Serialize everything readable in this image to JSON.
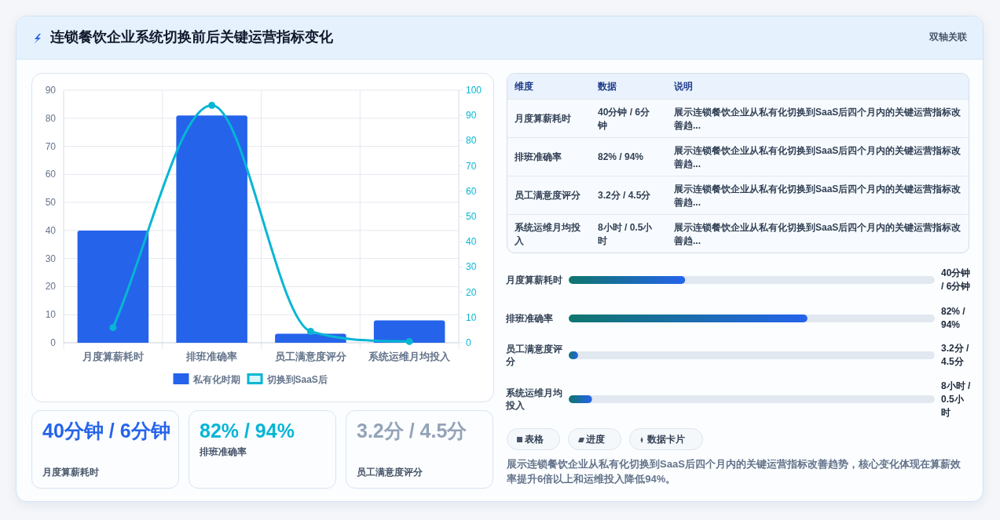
{
  "chart_data": [
    {
      "type": "bar",
      "title": "连锁餐饮企业系统切换前后关键运营指标变化",
      "annotations": [
        "双轴关联"
      ],
      "categories": [
        "月度算薪耗时",
        "排班准确率",
        "员工满意度评分",
        "系统运维月均投入"
      ],
      "series": [
        {
          "name": "私有化时期",
          "color": "#2563eb",
          "values": [
            40,
            81,
            3.2,
            8
          ]
        },
        {
          "name": "切换到SaaS后",
          "type": "line",
          "axis": "y2",
          "color": "#06b6d4",
          "values": [
            6,
            94,
            4.5,
            0.5
          ]
        }
      ],
      "ylim": [
        0,
        90
      ],
      "yticks": [
        0,
        10,
        20,
        30,
        40,
        50,
        60,
        70,
        80,
        90
      ],
      "y2lim": [
        0,
        100
      ],
      "y2ticks": [
        0,
        10,
        20,
        30,
        40,
        50,
        60,
        70,
        80,
        90,
        100
      ],
      "grid": true,
      "legend": "bottom",
      "marker": "circle"
    },
    {
      "type": "other",
      "annotations": [
        "维度",
        "数据",
        "说明",
        "月度算薪耗时",
        "40分钟 / 6分钟",
        "展示连锁餐饮企业从私有化切换到SaaS后四个月内的关键运营指标改善趋...",
        "排班准确率",
        "82% / 94%",
        "展示连锁餐饮企业从私有化切换到SaaS后四个月内的关键运营指标改善趋...",
        "员工满意度评分",
        "3.2分 / 4.5分",
        "展示连锁餐饮企业从私有化切换到SaaS后四个月内的关键运营指标改善趋...",
        "系统运维月均投入",
        "8小时 / 0.5小时",
        "展示连锁餐饮企业从私有化切换到SaaS后四个月内的关键运营指标改善趋..."
      ]
    },
    {
      "type": "bar",
      "orientation": "horizontal",
      "categories": [
        "月度算薪耗时",
        "排班准确率",
        "员工满意度评分",
        "系统运维月均投入"
      ],
      "values": [
        40,
        82,
        3.2,
        8
      ],
      "value_labels": [
        "40分钟 / 6分钟",
        "82% / 94%",
        "3.2分 / 4.5分",
        "8小时 / 0.5小时"
      ],
      "color": "#2563eb"
    },
    {
      "type": "other",
      "annotations": [
        "40分钟 / 6分钟",
        "月度算薪耗时",
        "82% / 94%",
        "排班准确率",
        "3.2分 / 4.5分",
        "员工满意度评分"
      ]
    },
    {
      "type": "other",
      "annotations": [
        "表格",
        "进度",
        "数据卡片",
        "展示连锁餐饮企业从私有化切换到SaaS后四个月内的关键运营指标改善趋势，核心变化体现在算薪效率提升6倍以上和运维投入降低94%。"
      ]
    }
  ]
}
